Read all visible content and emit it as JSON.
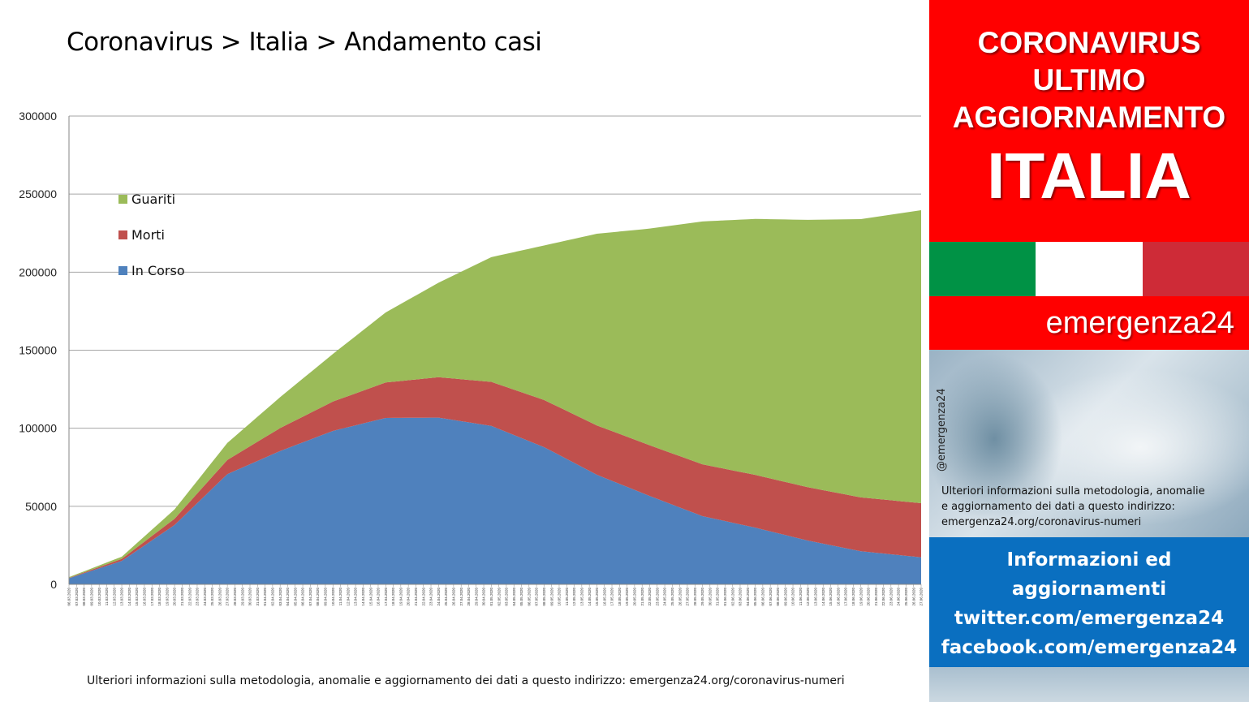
{
  "title": "Coronavirus > Italia > Andamento casi",
  "footnote": "Ulteriori informazioni sulla metodologia, anomalie e aggiornamento dei dati a questo indirizzo: emergenza24.org/coronavirus-numeri",
  "banner": {
    "line1": "CORONAVIRUS",
    "line2": "ULTIMO",
    "line3": "AGGIORNAMENTO",
    "country": "ITALIA",
    "brand": "emergenza24",
    "handle": "@emergenza24",
    "note_line1": "Ulteriori informazioni sulla metodologia, anomalie",
    "note_line2": "e aggiornamento dei dati a questo indirizzo:",
    "note_line3": "emergenza24.org/coronavirus-numeri",
    "info_line1": "Informazioni ed",
    "info_line2": "aggiornamenti",
    "info_line3": "twitter.com/emergenza24",
    "info_line4": "facebook.com/emergenza24",
    "flag_colors": [
      "#009245",
      "#ffffff",
      "#ce2b37"
    ]
  },
  "chart_data": {
    "type": "area",
    "stacked": true,
    "ylim": [
      0,
      300000
    ],
    "yticks": [
      0,
      50000,
      100000,
      150000,
      200000,
      250000,
      300000
    ],
    "grid": true,
    "legend_position": "top-left",
    "x_start": "06.03.2020",
    "x_end": "27.06.2020",
    "x_step_days": 1,
    "anchor_dates": [
      "06.03.2020",
      "13.03.2020",
      "20.03.2020",
      "27.03.2020",
      "03.04.2020",
      "10.04.2020",
      "17.04.2020",
      "24.04.2020",
      "01.05.2020",
      "08.05.2020",
      "15.05.2020",
      "22.05.2020",
      "29.05.2020",
      "05.06.2020",
      "12.06.2020",
      "19.06.2020",
      "27.06.2020"
    ],
    "series": [
      {
        "name": "In Corso",
        "color": "#4f81bd",
        "anchor_values": [
          3900,
          15000,
          38000,
          70600,
          85400,
          98300,
          106600,
          106800,
          101500,
          87900,
          70200,
          56600,
          43700,
          36300,
          28000,
          21200,
          17300
        ]
      },
      {
        "name": "Morti",
        "color": "#c0504d",
        "anchor_values": [
          200,
          1300,
          4000,
          9100,
          14700,
          18800,
          22700,
          25900,
          28200,
          30200,
          31600,
          32500,
          33200,
          33800,
          34200,
          34500,
          34700
        ]
      },
      {
        "name": "Guariti",
        "color": "#9bbb59",
        "anchor_values": [
          500,
          1400,
          6000,
          10900,
          19800,
          30500,
          44900,
          60500,
          79900,
          99000,
          122800,
          138800,
          155600,
          164000,
          171300,
          178300,
          187700
        ]
      }
    ]
  }
}
